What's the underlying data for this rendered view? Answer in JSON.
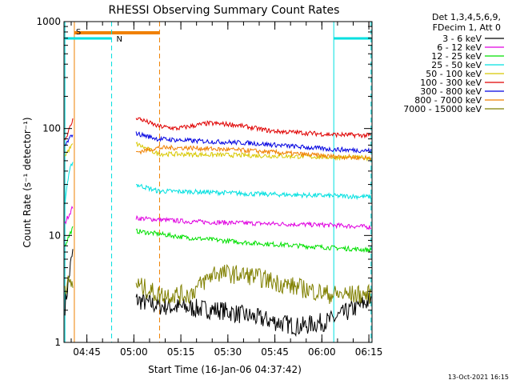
{
  "chart_data": {
    "type": "line",
    "title": "RHESSI Observing Summary Count Rates",
    "xlabel": "Start Time (16-Jan-06 04:37:42)",
    "ylabel": "Count Rate (s⁻¹ detector⁻¹)",
    "yscale": "log",
    "ylim": [
      1,
      1000
    ],
    "xlim_minutes_after_0437_42": [
      0,
      98.3
    ],
    "y_ticks": [
      "1",
      "10",
      "100",
      "1000"
    ],
    "x_ticks": [
      "04:45",
      "05:00",
      "05:15",
      "05:30",
      "05:45",
      "06:00",
      "06:15"
    ],
    "legend_header": [
      "Det 1,3,4,5,6,9,",
      "FDecim 1, Att 0"
    ],
    "legend_position": "right",
    "series": [
      {
        "name": "3 - 6 keV",
        "color": "#000000",
        "points": [
          [
            0.3,
            2.2
          ],
          [
            1,
            3
          ],
          [
            2,
            5
          ],
          [
            3,
            7.5
          ],
          [
            23,
            2.5
          ],
          [
            30,
            2.2
          ],
          [
            50,
            2.0
          ],
          [
            75,
            1.4
          ],
          [
            85,
            1.6
          ],
          [
            98,
            2.5
          ]
        ]
      },
      {
        "name": "6 - 12 keV",
        "color": "#e000e0",
        "points": [
          [
            0.3,
            13
          ],
          [
            1,
            14.5
          ],
          [
            2,
            16.5
          ],
          [
            3,
            19
          ],
          [
            23,
            14.5
          ],
          [
            40,
            13.5
          ],
          [
            60,
            13
          ],
          [
            85,
            12.5
          ],
          [
            98,
            12
          ]
        ]
      },
      {
        "name": "12 - 25 keV",
        "color": "#00e000",
        "points": [
          [
            0.3,
            8
          ],
          [
            1,
            9
          ],
          [
            2,
            10.5
          ],
          [
            3,
            12
          ],
          [
            23,
            11
          ],
          [
            40,
            9.5
          ],
          [
            60,
            8.5
          ],
          [
            85,
            7.7
          ],
          [
            98,
            7.3
          ]
        ]
      },
      {
        "name": "25 - 50 keV",
        "color": "#00e0e0",
        "points": [
          [
            0.3,
            20
          ],
          [
            1,
            30
          ],
          [
            2,
            42
          ],
          [
            3,
            52
          ],
          [
            23,
            30
          ],
          [
            30,
            26
          ],
          [
            45,
            25.5
          ],
          [
            60,
            24.5
          ],
          [
            85,
            23.5
          ],
          [
            98,
            23
          ]
        ]
      },
      {
        "name": "50 - 100 keV",
        "color": "#d8c800",
        "points": [
          [
            0.3,
            56
          ],
          [
            1,
            60
          ],
          [
            2,
            66
          ],
          [
            3,
            72
          ],
          [
            23,
            72
          ],
          [
            30,
            58
          ],
          [
            45,
            57
          ],
          [
            60,
            56
          ],
          [
            85,
            54
          ],
          [
            98,
            53
          ]
        ]
      },
      {
        "name": "100 - 300 keV",
        "color": "#e00000",
        "points": [
          [
            0.3,
            78
          ],
          [
            1,
            88
          ],
          [
            2,
            103
          ],
          [
            3,
            125
          ],
          [
            23,
            127
          ],
          [
            30,
            105
          ],
          [
            36,
            100
          ],
          [
            46,
            112
          ],
          [
            54,
            109
          ],
          [
            66,
            95
          ],
          [
            85,
            88
          ],
          [
            98,
            86
          ]
        ]
      },
      {
        "name": "300 - 800 keV",
        "color": "#0000e0",
        "points": [
          [
            0.3,
            68
          ],
          [
            1,
            74
          ],
          [
            2,
            82
          ],
          [
            3,
            92
          ],
          [
            23,
            90
          ],
          [
            30,
            80
          ],
          [
            40,
            77
          ],
          [
            60,
            73
          ],
          [
            85,
            64
          ],
          [
            98,
            62
          ]
        ]
      },
      {
        "name": "800 - 7000 keV",
        "color": "#f08000",
        "points": [
          [
            23,
            60
          ],
          [
            30,
            66
          ],
          [
            40,
            66
          ],
          [
            60,
            62
          ],
          [
            85,
            55
          ],
          [
            98,
            53
          ]
        ]
      },
      {
        "name": "7000 - 15000 keV",
        "color": "#808000",
        "points": [
          [
            0.3,
            3.5
          ],
          [
            2,
            3.5
          ],
          [
            3,
            3.5
          ],
          [
            23,
            3.5
          ],
          [
            30,
            2.8
          ],
          [
            40,
            2.8
          ],
          [
            48,
            4.5
          ],
          [
            60,
            4.2
          ],
          [
            70,
            3.5
          ],
          [
            85,
            2.8
          ],
          [
            98,
            2.8
          ]
        ]
      }
    ],
    "annotations": [
      {
        "label": "S",
        "color": "#f08000",
        "x_start": 3.3,
        "x_end": 30.5
      },
      {
        "label": "N",
        "color": "#00e0e0",
        "x_start": 0.3,
        "x_end": 15.2
      },
      {
        "label": "",
        "color": "#00e0e0",
        "x_start": 86.1,
        "x_end": 98
      }
    ]
  },
  "timestamp": "13-Oct-2021 16:15"
}
